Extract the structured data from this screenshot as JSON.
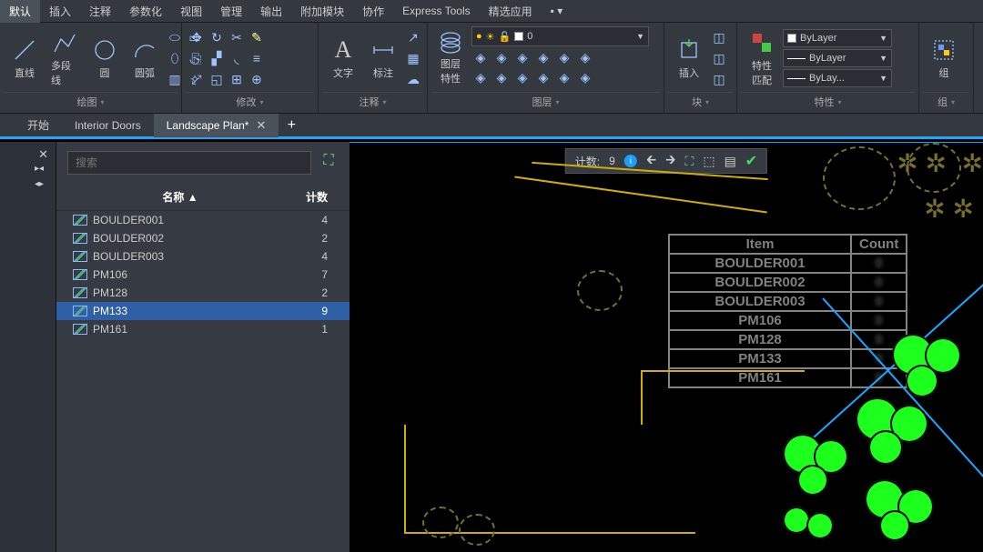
{
  "menu": [
    "默认",
    "插入",
    "注释",
    "参数化",
    "视图",
    "管理",
    "输出",
    "附加模块",
    "协作",
    "Express Tools",
    "精选应用"
  ],
  "menu_active": 0,
  "ribbon": {
    "panels": [
      {
        "label": "绘图",
        "tools_big": [
          {
            "label": "直线"
          },
          {
            "label": "多段线"
          },
          {
            "label": "圆"
          },
          {
            "label": "圆弧"
          }
        ]
      },
      {
        "label": "修改"
      },
      {
        "label": "注释",
        "tools_big": [
          {
            "label": "文字"
          },
          {
            "label": "标注"
          }
        ]
      },
      {
        "label": "图层",
        "tools_big": [
          {
            "label": "图层\n特性"
          }
        ],
        "combo": "0"
      },
      {
        "label": "块",
        "tools_big": [
          {
            "label": "插入"
          }
        ]
      },
      {
        "label": "特性",
        "tools_big": [
          {
            "label": "特性\n匹配"
          }
        ],
        "combos": [
          "ByLayer",
          "ByLayer",
          "ByLay..."
        ]
      },
      {
        "label": "组",
        "tools_big": [
          {
            "label": "组"
          }
        ]
      }
    ]
  },
  "tabs": [
    {
      "label": "开始",
      "closable": false
    },
    {
      "label": "Interior Doors",
      "closable": false
    },
    {
      "label": "Landscape Plan*",
      "closable": true,
      "active": true
    }
  ],
  "palette": {
    "search_placeholder": "搜索",
    "head_name": "名称 ▲",
    "head_count": "计数",
    "rows": [
      {
        "name": "BOULDER001",
        "count": 4
      },
      {
        "name": "BOULDER002",
        "count": 2
      },
      {
        "name": "BOULDER003",
        "count": 4
      },
      {
        "name": "PM106",
        "count": 7
      },
      {
        "name": "PM128",
        "count": 2
      },
      {
        "name": "PM133",
        "count": 9,
        "selected": true
      },
      {
        "name": "PM161",
        "count": 1
      }
    ]
  },
  "floatbar": {
    "label": "计数:",
    "value": 9
  },
  "ghost_table": {
    "head": [
      "Item",
      "Count"
    ],
    "rows": [
      "BOULDER001",
      "BOULDER002",
      "BOULDER003",
      "PM106",
      "PM128",
      "PM133",
      "PM161"
    ]
  },
  "colors": {
    "accent": "#1aa7ff",
    "green": "#1dff1d",
    "olive": "#77702c",
    "yellow": "#cfae00",
    "panel": "#34383f"
  }
}
